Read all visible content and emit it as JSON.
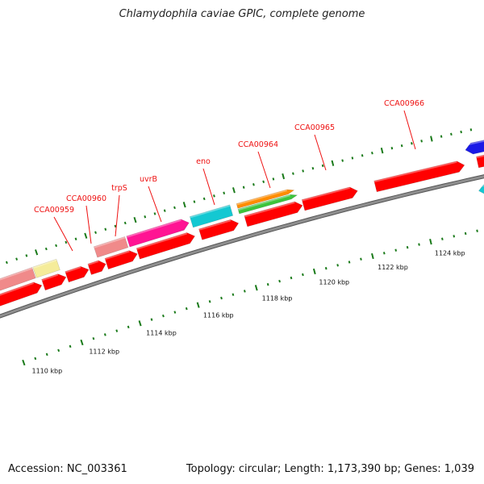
{
  "title": "Chlamydophila caviae GPIC, complete genome",
  "footer": {
    "accession": "Accession: NC_003361",
    "summary": "Topology: circular; Length: 1,173,390 bp; Genes: 1,039"
  },
  "colors": {
    "backbone": "#8f8f8f",
    "tick": "#1a7a1a",
    "gene_label": "#ee1111",
    "cds": "#ff0000",
    "salmon": "#f08a8a",
    "khaki": "#f5ec9a",
    "magenta": "#ff1493",
    "cyan": "#14c8d2",
    "orange": "#ff8c00",
    "green": "#3cc43c",
    "blue": "#1a1ae6"
  },
  "kbp_labels": [
    {
      "kbp": 1110,
      "text": "1110 kbp"
    },
    {
      "kbp": 1112,
      "text": "1112 kbp"
    },
    {
      "kbp": 1114,
      "text": "1114 kbp"
    },
    {
      "kbp": 1116,
      "text": "1116 kbp"
    },
    {
      "kbp": 1118,
      "text": "1118 kbp"
    },
    {
      "kbp": 1120,
      "text": "1120 kbp"
    },
    {
      "kbp": 1122,
      "text": "1122 kbp"
    },
    {
      "kbp": 1124,
      "text": "1124 kbp"
    }
  ],
  "gene_labels": [
    {
      "name": "CCA00959"
    },
    {
      "name": "CCA00960"
    },
    {
      "name": "trpS"
    },
    {
      "name": "uvrB"
    },
    {
      "name": "eno"
    },
    {
      "name": "CCA00964"
    },
    {
      "name": "CCA00965"
    },
    {
      "name": "CCA00966"
    }
  ],
  "features": [
    {
      "id": "cds-1",
      "track": "cds",
      "color": "cds",
      "dir": 1
    },
    {
      "id": "cds-2",
      "track": "cds",
      "color": "cds",
      "dir": 1
    },
    {
      "id": "cds-3",
      "track": "cds",
      "color": "cds",
      "dir": 1
    },
    {
      "id": "cds-4",
      "track": "cds",
      "color": "cds",
      "dir": 1
    },
    {
      "id": "cds-5",
      "track": "cds",
      "color": "cds",
      "dir": 1
    },
    {
      "id": "cds-6",
      "track": "cds",
      "color": "cds",
      "dir": 1
    },
    {
      "id": "cds-7",
      "track": "cds",
      "color": "cds",
      "dir": 1
    },
    {
      "id": "cds-8",
      "track": "cds",
      "color": "cds",
      "dir": 1
    },
    {
      "id": "cds-9",
      "track": "cds",
      "color": "cds",
      "dir": 1
    },
    {
      "id": "cds-10",
      "track": "cds",
      "color": "cds",
      "dir": 1
    },
    {
      "id": "cds-11",
      "track": "cds",
      "color": "cds",
      "dir": 1
    },
    {
      "id": "salmon-1",
      "track": "cog",
      "color": "salmon",
      "dir": 0
    },
    {
      "id": "khaki-1",
      "track": "cog",
      "color": "khaki",
      "dir": 0
    },
    {
      "id": "salmon-2",
      "track": "cog",
      "color": "salmon",
      "dir": 0
    },
    {
      "id": "magenta-1",
      "track": "cog",
      "color": "magenta",
      "dir": 1
    },
    {
      "id": "cyan-1",
      "track": "cog",
      "color": "cyan",
      "dir": 0
    },
    {
      "id": "green-1",
      "track": "cog2",
      "color": "green",
      "dir": 1
    },
    {
      "id": "orange-1",
      "track": "cog3",
      "color": "orange",
      "dir": 1
    },
    {
      "id": "blue-1",
      "track": "cog",
      "color": "blue",
      "dir": -1
    },
    {
      "id": "cyan-2",
      "track": "cogl",
      "color": "cyan",
      "dir": -1
    }
  ]
}
